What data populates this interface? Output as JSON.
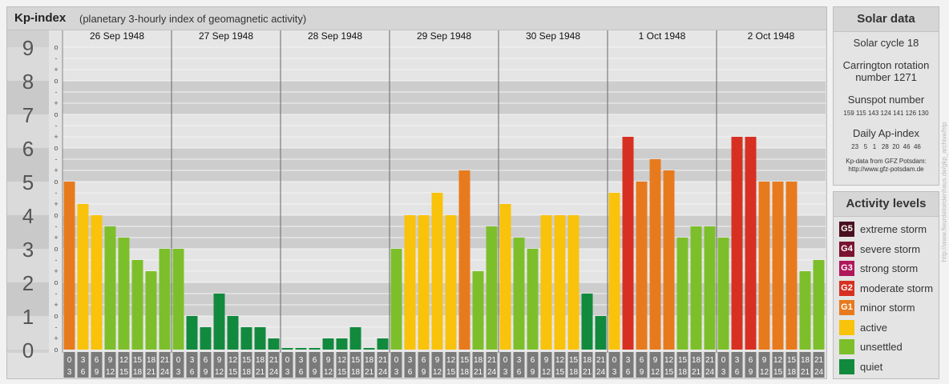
{
  "header": {
    "title": "Kp-index",
    "subtitle": "(planetary 3-hourly index of geomagnetic activity)"
  },
  "chart_data": {
    "type": "bar",
    "title": "Kp-index",
    "subtitle": "(planetary 3-hourly index of geomagnetic activity)",
    "ylim": [
      0,
      9
    ],
    "y_ticks": [
      "0",
      "1",
      "2",
      "3",
      "4",
      "5",
      "6",
      "7",
      "8",
      "9"
    ],
    "minor_tick_marks": [
      "o",
      "+",
      "-"
    ],
    "days": [
      "26 Sep 1948",
      "27 Sep 1948",
      "28 Sep 1948",
      "29 Sep 1948",
      "30 Sep 1948",
      "1 Oct 1948",
      "2 Oct 1948"
    ],
    "hour_start_labels": [
      "0",
      "3",
      "6",
      "9",
      "12",
      "15",
      "18",
      "21"
    ],
    "hour_end_labels": [
      "3",
      "6",
      "9",
      "12",
      "15",
      "18",
      "21",
      "24"
    ],
    "series": [
      {
        "values": [
          5.0,
          4.333,
          4.0,
          3.667,
          3.333,
          2.667,
          2.333,
          3.0,
          3.0,
          1.0,
          0.667,
          1.667,
          1.0,
          0.667,
          0.667,
          0.333,
          0.0,
          0.0,
          0.0,
          0.333,
          0.333,
          0.667,
          0.0,
          0.333,
          3.0,
          4.0,
          4.0,
          4.667,
          4.0,
          5.333,
          2.333,
          3.667,
          4.333,
          3.333,
          3.0,
          4.0,
          4.0,
          4.0,
          1.667,
          1.0,
          4.667,
          6.333,
          5.0,
          5.667,
          5.333,
          3.333,
          3.667,
          3.667,
          3.333,
          6.333,
          6.333,
          5.0,
          5.0,
          5.0,
          2.333,
          2.667
        ]
      }
    ],
    "legend": [
      {
        "code": "G5",
        "label": "extreme storm",
        "color": "#4a1020"
      },
      {
        "code": "G4",
        "label": "severe storm",
        "color": "#7a1430"
      },
      {
        "code": "G3",
        "label": "strong storm",
        "color": "#b0165a"
      },
      {
        "code": "G2",
        "label": "moderate storm",
        "color": "#d73022"
      },
      {
        "code": "G1",
        "label": "minor storm",
        "color": "#e87a1e"
      },
      {
        "code": "",
        "label": "active",
        "color": "#f9c20b"
      },
      {
        "code": "",
        "label": "unsettled",
        "color": "#7dbf2b"
      },
      {
        "code": "",
        "label": "quiet",
        "color": "#128a3e"
      }
    ],
    "legend_placement": "right"
  },
  "solar": {
    "title": "Solar data",
    "cycle": "Solar cycle 18",
    "carrington_line1": "Carrington rotation",
    "carrington_line2": "number 1271",
    "sunspot_label": "Sunspot number",
    "sunspot_values": "159 115 143 124 141 126 130",
    "ap_label": "Daily Ap-index",
    "ap_values": "23   5   1   28  20  46  46",
    "source_line1": "Kp-data from GFZ Potsdam:",
    "source_line2": "http://www.gfz-potsdam.de"
  },
  "activity": {
    "title": "Activity levels"
  },
  "footer": {
    "url": "http://www.fleurdeloirdenhaus.de/gkp_archive/htp"
  }
}
